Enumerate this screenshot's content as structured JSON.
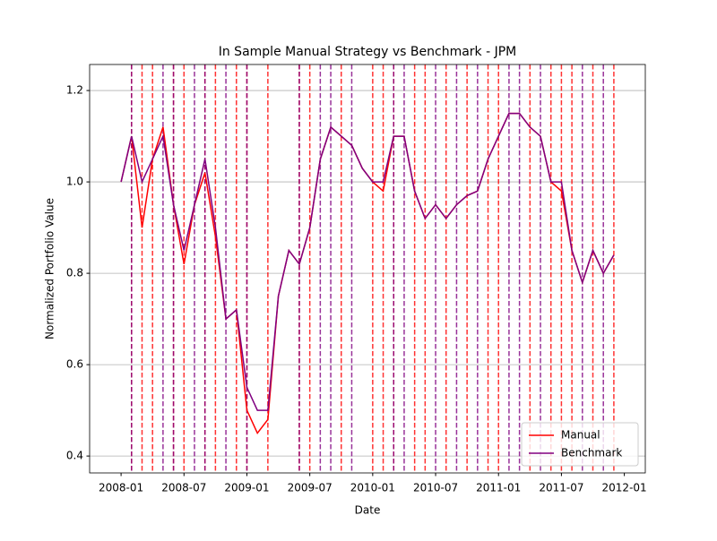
{
  "chart_data": {
    "type": "line",
    "title": "In Sample Manual Strategy vs Benchmark - JPM",
    "xlabel": "Date",
    "ylabel": "Normalized Portfolio Value",
    "x": [
      "2008-01",
      "2008-02",
      "2008-03",
      "2008-04",
      "2008-05",
      "2008-06",
      "2008-07",
      "2008-08",
      "2008-09",
      "2008-10",
      "2008-11",
      "2008-12",
      "2009-01",
      "2009-02",
      "2009-03",
      "2009-04",
      "2009-05",
      "2009-06",
      "2009-07",
      "2009-08",
      "2009-09",
      "2009-10",
      "2009-11",
      "2009-12",
      "2010-01",
      "2010-02",
      "2010-03",
      "2010-04",
      "2010-05",
      "2010-06",
      "2010-07",
      "2010-08",
      "2010-09",
      "2010-10",
      "2010-11",
      "2010-12",
      "2011-01",
      "2011-02",
      "2011-03",
      "2011-04",
      "2011-05",
      "2011-06",
      "2011-07",
      "2011-08",
      "2011-09",
      "2011-10",
      "2011-11",
      "2011-12"
    ],
    "series": [
      {
        "name": "Manual",
        "color": "#ff0000",
        "values": [
          1.0,
          1.1,
          0.9,
          1.05,
          1.12,
          0.95,
          0.82,
          0.95,
          1.02,
          0.88,
          0.7,
          0.72,
          0.5,
          0.45,
          0.48,
          0.75,
          0.85,
          0.82,
          0.9,
          1.05,
          1.12,
          1.1,
          1.08,
          1.03,
          1.0,
          0.98,
          1.1,
          1.1,
          0.98,
          0.92,
          0.95,
          0.92,
          0.95,
          0.97,
          0.98,
          1.05,
          1.1,
          1.15,
          1.15,
          1.12,
          1.1,
          1.0,
          0.98,
          0.85,
          0.78,
          0.85,
          0.8,
          0.84
        ]
      },
      {
        "name": "Benchmark",
        "color": "#800080",
        "values": [
          1.0,
          1.1,
          1.0,
          1.05,
          1.1,
          0.95,
          0.85,
          0.95,
          1.05,
          0.9,
          0.7,
          0.72,
          0.55,
          0.5,
          0.5,
          0.75,
          0.85,
          0.82,
          0.9,
          1.05,
          1.12,
          1.1,
          1.08,
          1.03,
          1.0,
          1.0,
          1.1,
          1.1,
          0.98,
          0.92,
          0.95,
          0.92,
          0.95,
          0.97,
          0.98,
          1.05,
          1.1,
          1.15,
          1.15,
          1.12,
          1.1,
          1.0,
          1.0,
          0.85,
          0.78,
          0.85,
          0.8,
          0.84
        ]
      }
    ],
    "vlines": [
      {
        "color": "#ff0000",
        "x": [
          "2008-02",
          "2008-03",
          "2008-04",
          "2008-06",
          "2008-07",
          "2008-09",
          "2008-10",
          "2008-12",
          "2009-01",
          "2009-03",
          "2009-06",
          "2009-07",
          "2009-10",
          "2010-01",
          "2010-02",
          "2010-03",
          "2010-05",
          "2010-06",
          "2010-08",
          "2010-10",
          "2010-12",
          "2011-01",
          "2011-04",
          "2011-06",
          "2011-07",
          "2011-08",
          "2011-10",
          "2011-12"
        ]
      },
      {
        "color": "#800080",
        "x": [
          "2008-02",
          "2008-05",
          "2008-06",
          "2008-08",
          "2008-09",
          "2008-11",
          "2009-01",
          "2009-06",
          "2009-08",
          "2009-09",
          "2009-11",
          "2010-03",
          "2010-04",
          "2010-07",
          "2010-09",
          "2010-11",
          "2011-02",
          "2011-03",
          "2011-05",
          "2011-09",
          "2011-11"
        ]
      }
    ],
    "xlim": [
      "2007-10",
      "2012-03"
    ],
    "xticks": [
      "2008-01",
      "2008-07",
      "2009-01",
      "2009-07",
      "2010-01",
      "2010-07",
      "2011-01",
      "2011-07",
      "2012-01"
    ],
    "ylim": [
      0.363,
      1.257
    ],
    "yticks": [
      0.4,
      0.6,
      0.8,
      {
        "value": 1,
        "label": "1.0"
      },
      1.2
    ],
    "grid": true,
    "legend": "lower right"
  }
}
